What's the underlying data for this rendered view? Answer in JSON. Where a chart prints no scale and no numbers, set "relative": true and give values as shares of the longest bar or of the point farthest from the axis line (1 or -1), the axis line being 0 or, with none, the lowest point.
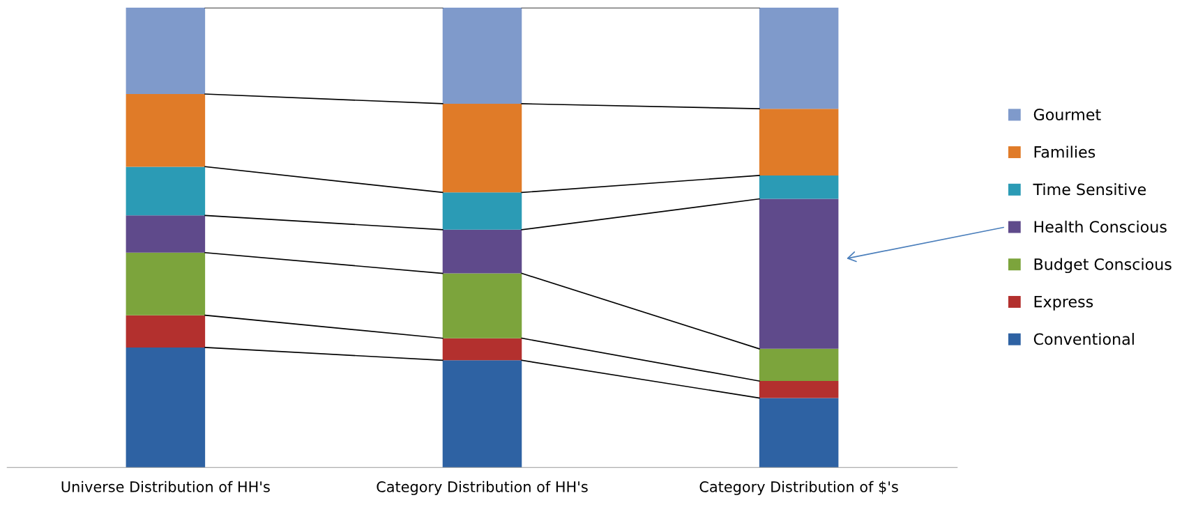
{
  "chart_data": {
    "type": "bar",
    "stacked": true,
    "relative": true,
    "legend": "right",
    "categories": [
      "Universe Distribution of HH's",
      "Category Distribution of HH's",
      "Category Distribution of $'s"
    ],
    "series": [
      {
        "name": "Conventional",
        "color": "#2e62a3",
        "values": [
          0.261,
          0.233,
          0.151
        ]
      },
      {
        "name": "Express",
        "color": "#b3302e",
        "values": [
          0.07,
          0.048,
          0.037
        ]
      },
      {
        "name": "Budget Conscious",
        "color": "#7ca43c",
        "values": [
          0.136,
          0.141,
          0.07
        ]
      },
      {
        "name": "Health Conscious",
        "color": "#5f4a8b",
        "values": [
          0.081,
          0.095,
          0.326
        ]
      },
      {
        "name": "Time Sensitive",
        "color": "#2b9bb5",
        "values": [
          0.106,
          0.081,
          0.051
        ]
      },
      {
        "name": "Families",
        "color": "#e07b28",
        "values": [
          0.158,
          0.193,
          0.145
        ]
      },
      {
        "name": "Gourmet",
        "color": "#7f9acb",
        "values": [
          0.188,
          0.209,
          0.22
        ]
      }
    ]
  }
}
